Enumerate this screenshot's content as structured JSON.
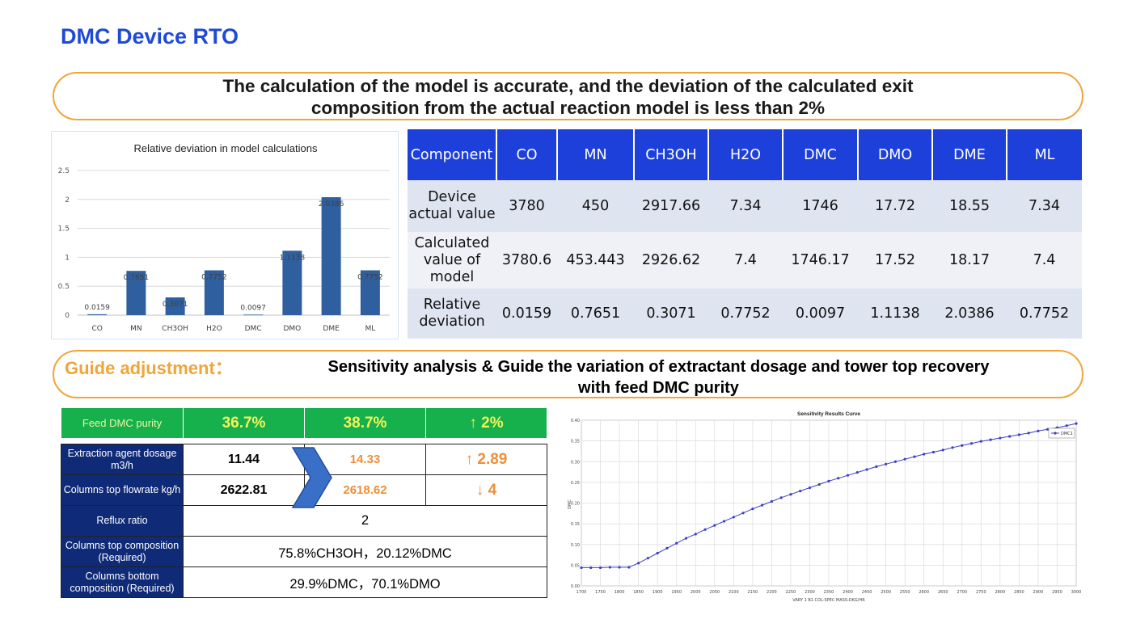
{
  "page_title": "DMC Device RTO",
  "banner_top": {
    "line1": "The calculation of the model is accurate, and the deviation of the calculated exit",
    "line2": "composition from the actual reaction model is less than 2%"
  },
  "banner_guide": {
    "label": "Guide adjustment：",
    "line1": "Sensitivity analysis & Guide the variation of extractant dosage and tower top recovery",
    "line2": "with feed DMC purity"
  },
  "component_table": {
    "headers": [
      "Component",
      "CO",
      "MN",
      "CH3OH",
      "H2O",
      "DMC",
      "DMO",
      "DME",
      "ML"
    ],
    "rows": [
      {
        "label": "Device actual value",
        "values": [
          "3780",
          "450",
          "2917.66",
          "7.34",
          "1746",
          "17.72",
          "18.55",
          "7.34"
        ]
      },
      {
        "label": "Calculated value of model",
        "values": [
          "3780.6",
          "453.443",
          "2926.62",
          "7.4",
          "1746.17",
          "17.52",
          "18.17",
          "7.4"
        ]
      },
      {
        "label": "Relative deviation",
        "values": [
          "0.0159",
          "0.7651",
          "0.3071",
          "0.7752",
          "0.0097",
          "1.1138",
          "2.0386",
          "0.7752"
        ]
      }
    ]
  },
  "feed": {
    "label": "Feed DMC purity",
    "v1": "36.7%",
    "v2": "38.7%",
    "delta": "↑ 2%"
  },
  "adjust_table": {
    "extraction_label": "Extraction agent dosage m3/h",
    "extraction_before": "11.44",
    "extraction_after": "14.33",
    "extraction_delta": "↑ 2.89",
    "top_flow_label": "Columns top flowrate kg/h",
    "top_flow_before": "2622.81",
    "top_flow_after": "2618.62",
    "top_flow_delta": "↓ 4",
    "reflux_label": "Reflux ratio",
    "reflux_value": "2",
    "top_comp_label": "Columns top composition (Required)",
    "top_comp_value": "75.8%CH3OH，20.12%DMC",
    "bottom_comp_label": "Columns bottom composition (Required)",
    "bottom_comp_value": "29.9%DMC，70.1%DMO"
  },
  "colors": {
    "title_blue": "#1f49d8",
    "banner_orange": "#f0a53a",
    "table_header_blue": "#1d40db",
    "feed_green": "#16b04d",
    "label_navy": "#0f2a77",
    "value_orange": "#ee8f3a",
    "bar_blue": "#2f5f9e",
    "curve_blue": "#3d3fc2"
  },
  "chart_data": [
    {
      "type": "bar",
      "title": "Relative deviation in model calculations",
      "categories": [
        "CO",
        "MN",
        "CH3OH",
        "H2O",
        "DMC",
        "DMO",
        "DME",
        "ML"
      ],
      "values": [
        0.0159,
        0.7651,
        0.3071,
        0.7752,
        0.0097,
        1.1138,
        2.0386,
        0.7752
      ],
      "data_labels": [
        "0.0159",
        "0.7651",
        "0.3071",
        "0.7752",
        "0.0097",
        "1.1138",
        "2.0386",
        "0.7752"
      ],
      "yticks": [
        "0",
        "0.5",
        "1",
        "1.5",
        "2",
        "2.5"
      ],
      "ylim": [
        0,
        2.5
      ],
      "grid": true
    },
    {
      "type": "line",
      "title": "Sensitivity Results Curve",
      "xlabel": "VARY 1 B1 COL-SPEC MASS-DKG/HR",
      "ylabel": "DMC",
      "series": [
        {
          "name": "DMC1",
          "x": [
            1700,
            1725,
            1750,
            1775,
            1800,
            1825,
            1850,
            1875,
            1900,
            1925,
            1950,
            1975,
            2000,
            2025,
            2050,
            2075,
            2100,
            2125,
            2150,
            2175,
            2200,
            2225,
            2250,
            2275,
            2300,
            2325,
            2350,
            2375,
            2400,
            2425,
            2450,
            2475,
            2500,
            2525,
            2550,
            2575,
            2600,
            2625,
            2650,
            2675,
            2700,
            2725,
            2750,
            2775,
            2800,
            2825,
            2850,
            2875,
            2900,
            2925,
            2950,
            2975,
            3000
          ],
          "y": [
            0.044,
            0.044,
            0.044,
            0.045,
            0.045,
            0.045,
            0.055,
            0.067,
            0.079,
            0.091,
            0.103,
            0.115,
            0.125,
            0.136,
            0.146,
            0.156,
            0.166,
            0.176,
            0.186,
            0.195,
            0.204,
            0.213,
            0.221,
            0.229,
            0.237,
            0.245,
            0.253,
            0.26,
            0.267,
            0.274,
            0.281,
            0.288,
            0.294,
            0.3,
            0.306,
            0.312,
            0.318,
            0.323,
            0.328,
            0.334,
            0.339,
            0.344,
            0.349,
            0.353,
            0.357,
            0.361,
            0.365,
            0.369,
            0.374,
            0.378,
            0.382,
            0.387,
            0.392
          ]
        }
      ],
      "xticks": [
        "1700",
        "1750",
        "1800",
        "1850",
        "1900",
        "1950",
        "2000",
        "2050",
        "2100",
        "2150",
        "2200",
        "2250",
        "2300",
        "2350",
        "2400",
        "2450",
        "2500",
        "2550",
        "2600",
        "2650",
        "2700",
        "2750",
        "2800",
        "2850",
        "2900",
        "2950",
        "3000"
      ],
      "yticks": [
        "0.00",
        "0.05",
        "0.10",
        "0.15",
        "0.20",
        "0.25",
        "0.30",
        "0.35",
        "0.40"
      ],
      "xlim": [
        1700,
        3000
      ],
      "ylim": [
        0,
        0.4
      ],
      "legend": "top-right",
      "grid": true
    }
  ]
}
